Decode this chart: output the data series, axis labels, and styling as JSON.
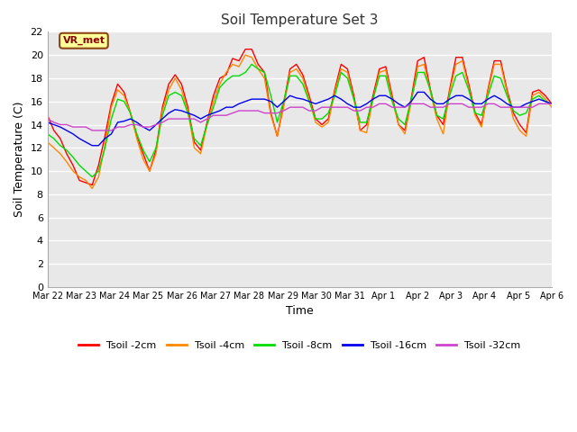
{
  "title": "Soil Temperature Set 3",
  "xlabel": "Time",
  "ylabel": "Soil Temperature (C)",
  "ylim": [
    0,
    22
  ],
  "yticks": [
    0,
    2,
    4,
    6,
    8,
    10,
    12,
    14,
    16,
    18,
    20,
    22
  ],
  "outer_bg_color": "#ffffff",
  "plot_bg_color": "#e8e8e8",
  "grid_color": "#ffffff",
  "series_colors": [
    "#ff0000",
    "#ff8800",
    "#00dd00",
    "#0000ee",
    "#cc44cc"
  ],
  "series_labels": [
    "Tsoil -2cm",
    "Tsoil -4cm",
    "Tsoil -8cm",
    "Tsoil -16cm",
    "Tsoil -32cm"
  ],
  "annotation_text": "VR_met",
  "annotation_bg": "#ffff99",
  "annotation_border": "#8b4513",
  "x_tick_labels": [
    "Mar 22",
    "Mar 23",
    "Mar 24",
    "Mar 25",
    "Mar 26",
    "Mar 27",
    "Mar 28",
    "Mar 29",
    "Mar 30",
    "Mar 31",
    "Apr 1",
    "Apr 2",
    "Apr 3",
    "Apr 4",
    "Apr 5",
    "Apr 6"
  ],
  "tsoil_2cm": [
    14.8,
    13.5,
    12.8,
    11.5,
    10.5,
    9.2,
    9.0,
    8.8,
    10.5,
    13.0,
    15.8,
    17.5,
    16.8,
    15.0,
    13.0,
    11.5,
    10.0,
    11.8,
    15.5,
    17.5,
    18.3,
    17.5,
    15.5,
    12.5,
    11.8,
    14.2,
    16.5,
    18.0,
    18.3,
    19.7,
    19.5,
    20.5,
    20.5,
    19.2,
    18.5,
    15.0,
    13.0,
    15.8,
    18.8,
    19.2,
    18.3,
    16.5,
    14.5,
    14.0,
    14.5,
    17.0,
    19.2,
    18.8,
    16.5,
    13.5,
    14.0,
    16.5,
    18.8,
    19.0,
    16.5,
    14.0,
    13.5,
    16.3,
    19.5,
    19.8,
    17.0,
    14.8,
    14.0,
    17.0,
    19.8,
    19.8,
    17.5,
    15.0,
    14.0,
    17.0,
    19.5,
    19.5,
    17.0,
    15.0,
    14.0,
    13.3,
    16.8,
    17.0,
    16.5,
    15.8
  ],
  "tsoil_4cm": [
    12.5,
    12.0,
    11.5,
    10.8,
    10.0,
    9.5,
    9.2,
    8.5,
    9.5,
    12.2,
    15.5,
    17.0,
    16.5,
    15.0,
    12.8,
    11.0,
    10.0,
    11.5,
    15.2,
    17.0,
    18.0,
    17.0,
    15.2,
    12.0,
    11.5,
    14.0,
    16.0,
    17.5,
    18.5,
    19.2,
    19.0,
    20.0,
    19.8,
    18.8,
    18.0,
    14.8,
    13.0,
    15.5,
    18.5,
    18.8,
    18.0,
    16.2,
    14.2,
    13.8,
    14.2,
    16.8,
    18.8,
    18.5,
    16.2,
    13.5,
    13.3,
    16.2,
    18.5,
    18.7,
    16.2,
    14.0,
    13.2,
    16.0,
    19.0,
    19.2,
    16.8,
    14.5,
    13.2,
    16.8,
    19.2,
    19.5,
    17.2,
    14.8,
    13.8,
    16.8,
    19.2,
    19.2,
    16.8,
    14.5,
    13.5,
    13.0,
    16.5,
    16.8,
    16.2,
    15.5
  ],
  "tsoil_8cm": [
    13.2,
    12.8,
    12.2,
    11.8,
    11.2,
    10.5,
    10.0,
    9.5,
    10.0,
    12.0,
    14.5,
    16.2,
    16.0,
    15.0,
    13.2,
    11.8,
    10.8,
    12.0,
    14.8,
    16.5,
    16.8,
    16.5,
    15.0,
    12.8,
    12.2,
    14.0,
    15.5,
    17.2,
    17.8,
    18.2,
    18.2,
    18.5,
    19.2,
    18.8,
    18.5,
    16.5,
    14.2,
    16.0,
    18.2,
    18.2,
    17.5,
    16.0,
    14.5,
    14.5,
    15.0,
    16.5,
    18.5,
    18.0,
    16.2,
    14.2,
    14.2,
    16.2,
    18.2,
    18.2,
    16.0,
    14.5,
    14.0,
    16.2,
    18.5,
    18.5,
    17.0,
    14.8,
    14.5,
    16.5,
    18.2,
    18.5,
    17.0,
    15.0,
    14.8,
    16.5,
    18.2,
    18.0,
    16.5,
    15.2,
    14.8,
    15.0,
    16.2,
    16.5,
    16.0,
    15.8
  ],
  "tsoil_16cm": [
    14.2,
    14.0,
    13.8,
    13.5,
    13.2,
    12.8,
    12.5,
    12.2,
    12.2,
    12.8,
    13.2,
    14.2,
    14.3,
    14.5,
    14.2,
    13.8,
    13.5,
    14.0,
    14.5,
    15.0,
    15.3,
    15.2,
    15.0,
    14.8,
    14.5,
    14.8,
    15.0,
    15.2,
    15.5,
    15.5,
    15.8,
    16.0,
    16.2,
    16.2,
    16.2,
    16.0,
    15.5,
    16.0,
    16.5,
    16.3,
    16.2,
    16.0,
    15.8,
    16.0,
    16.2,
    16.5,
    16.2,
    15.8,
    15.5,
    15.5,
    15.8,
    16.2,
    16.5,
    16.5,
    16.2,
    15.8,
    15.5,
    16.0,
    16.8,
    16.8,
    16.2,
    15.8,
    15.8,
    16.2,
    16.5,
    16.5,
    16.2,
    15.8,
    15.8,
    16.2,
    16.5,
    16.2,
    15.8,
    15.5,
    15.5,
    15.8,
    16.0,
    16.2,
    16.0,
    15.8
  ],
  "tsoil_32cm": [
    14.5,
    14.2,
    14.0,
    14.0,
    13.8,
    13.8,
    13.8,
    13.5,
    13.5,
    13.5,
    13.5,
    13.8,
    13.8,
    14.0,
    14.0,
    13.8,
    13.8,
    14.0,
    14.2,
    14.5,
    14.5,
    14.5,
    14.5,
    14.5,
    14.2,
    14.5,
    14.8,
    14.8,
    14.8,
    15.0,
    15.2,
    15.2,
    15.2,
    15.2,
    15.0,
    15.0,
    15.0,
    15.2,
    15.5,
    15.5,
    15.5,
    15.2,
    15.2,
    15.5,
    15.5,
    15.5,
    15.5,
    15.5,
    15.2,
    15.2,
    15.5,
    15.5,
    15.8,
    15.8,
    15.5,
    15.5,
    15.5,
    15.8,
    15.8,
    15.8,
    15.5,
    15.5,
    15.5,
    15.8,
    15.8,
    15.8,
    15.5,
    15.5,
    15.5,
    15.8,
    15.8,
    15.5,
    15.5,
    15.5,
    15.5,
    15.5,
    15.5,
    15.8,
    15.8,
    15.8
  ]
}
